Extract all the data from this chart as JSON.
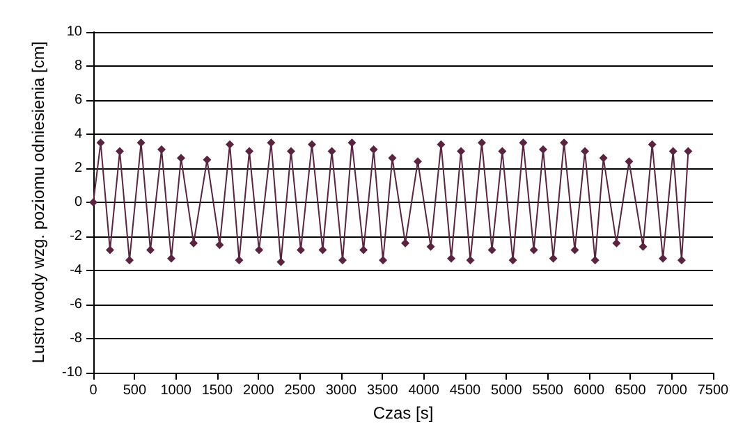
{
  "chart_data": {
    "type": "line",
    "xlabel": "Czas [s]",
    "ylabel": "Lustro wody wzg. poziomu odniesienia [cm]",
    "x": [
      0,
      89,
      202,
      320,
      438,
      578,
      691,
      826,
      944,
      1062,
      1214,
      1377,
      1529,
      1652,
      1765,
      1888,
      2006,
      2152,
      2270,
      2393,
      2511,
      2646,
      2776,
      2887,
      3017,
      3130,
      3270,
      3393,
      3506,
      3619,
      3776,
      3927,
      4084,
      4209,
      4332,
      4450,
      4563,
      4702,
      4825,
      4950,
      5078,
      5203,
      5331,
      5444,
      5567,
      5697,
      5827,
      5950,
      6073,
      6174,
      6332,
      6484,
      6653,
      6764,
      6894,
      7017,
      7120,
      7200
    ],
    "series": [
      {
        "color": "#5a2440",
        "values": [
          0,
          3.5,
          -2.8,
          3.0,
          -3.4,
          3.5,
          -2.8,
          3.1,
          -3.3,
          2.6,
          -2.4,
          2.5,
          -2.5,
          3.4,
          -3.4,
          3.0,
          -2.8,
          3.5,
          -3.5,
          3.0,
          -2.8,
          3.4,
          -2.8,
          3.0,
          -3.4,
          3.5,
          -2.8,
          3.1,
          -3.4,
          2.6,
          -2.4,
          2.4,
          -2.6,
          3.4,
          -3.3,
          3.0,
          -3.4,
          3.5,
          -2.8,
          3.0,
          -3.4,
          3.5,
          -2.8,
          3.1,
          -3.3,
          3.5,
          -2.8,
          3.0,
          -3.4,
          2.6,
          -2.4,
          2.4,
          -2.6,
          3.4,
          -3.3,
          3.0,
          -3.4,
          3.0
        ]
      }
    ],
    "xlim": [
      0,
      7500
    ],
    "xticks": [
      0,
      500,
      1000,
      1500,
      2000,
      2500,
      3000,
      3500,
      4000,
      4500,
      5000,
      5500,
      6000,
      6500,
      7000,
      7500
    ],
    "ylim": [
      -10,
      10
    ],
    "yticks": [
      -10,
      -8,
      -6,
      -4,
      -2,
      0,
      2,
      4,
      6,
      8,
      10
    ],
    "grid": "y",
    "marker": "diamond",
    "line_style": "solid"
  }
}
